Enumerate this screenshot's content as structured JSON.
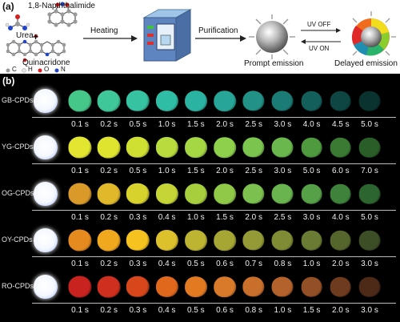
{
  "panel_a": {
    "label": "(a)",
    "molecules": [
      "1,8-Napththalimide",
      "Urea",
      "Quinacridone"
    ],
    "plus": "+",
    "atom_legend": [
      {
        "label": "C",
        "color": "#9a9a9a"
      },
      {
        "label": "H",
        "color": "#e6e6e6"
      },
      {
        "label": "O",
        "color": "#d42020"
      },
      {
        "label": "N",
        "color": "#2346c8"
      }
    ],
    "steps": [
      "Heating",
      "Purification"
    ],
    "emission_prompt": "Prompt emission",
    "emission_delayed": "Delayed emission",
    "uv_off": "UV OFF",
    "uv_on": "UV ON"
  },
  "panel_b": {
    "label": "(b)",
    "rows": [
      {
        "name": "GB-CPDs",
        "times": [
          "0.1 s",
          "0.2 s",
          "0.5 s",
          "1.0 s",
          "1.5 s",
          "2.0 s",
          "2.5 s",
          "3.0 s",
          "4.0 s",
          "4.5 s",
          "5.0 s"
        ],
        "colors": [
          "#46c78a",
          "#3fc79a",
          "#36c3a1",
          "#30bda6",
          "#2bb3a2",
          "#27a597",
          "#219285",
          "#1a7c74",
          "#135f5b",
          "#0d4642",
          "#0a3330"
        ]
      },
      {
        "name": "YG-CPDs",
        "times": [
          "0.1 s",
          "0.2 s",
          "0.5 s",
          "1.0 s",
          "1.5 s",
          "2.0 s",
          "2.5 s",
          "3.0 s",
          "5.0 s",
          "6.0 s",
          "7.0 s"
        ],
        "colors": [
          "#e3e630",
          "#dfe52f",
          "#cfe033",
          "#b8dc3e",
          "#a5d745",
          "#8ecf4b",
          "#7bc54e",
          "#6ab84d",
          "#4f9a3f",
          "#3a7a33",
          "#2a5e28"
        ]
      },
      {
        "name": "OG-CPDs",
        "times": [
          "0.1 s",
          "0.2 s",
          "0.3 s",
          "0.4 s",
          "1.0 s",
          "1.5 s",
          "2.0 s",
          "2.5 s",
          "3.0 s",
          "4.0 s",
          "5.0 s"
        ],
        "colors": [
          "#d99a2a",
          "#dfb92a",
          "#d8d22c",
          "#c5d535",
          "#a7cf3d",
          "#8fc947",
          "#7cc04f",
          "#6ab450",
          "#56a048",
          "#3e823b",
          "#2c652f"
        ]
      },
      {
        "name": "OY-CPDs",
        "times": [
          "0.1 s",
          "0.2 s",
          "0.3 s",
          "0.4 s",
          "0.5 s",
          "0.6 s",
          "0.7 s",
          "0.8 s",
          "1.0 s",
          "2.0 s",
          "3.0 s"
        ],
        "colors": [
          "#e58a1e",
          "#f0a81e",
          "#f5c21f",
          "#dcc02c",
          "#bdb432",
          "#a6a634",
          "#939a36",
          "#7f8c35",
          "#6a7c33",
          "#54662c",
          "#3c4e25"
        ]
      },
      {
        "name": "RO-CPDs",
        "times": [
          "0.1 s",
          "0.2 s",
          "0.3 s",
          "0.4 s",
          "0.5 s",
          "0.6 s",
          "0.8 s",
          "1.0 s",
          "1.5 s",
          "2.0 s",
          "3.0 s"
        ],
        "colors": [
          "#c8231f",
          "#cf2f1e",
          "#d8461c",
          "#e0681c",
          "#e27a22",
          "#d97a2a",
          "#c96f2c",
          "#b3622b",
          "#934f25",
          "#6f3b1f",
          "#4d2a18"
        ]
      }
    ]
  }
}
